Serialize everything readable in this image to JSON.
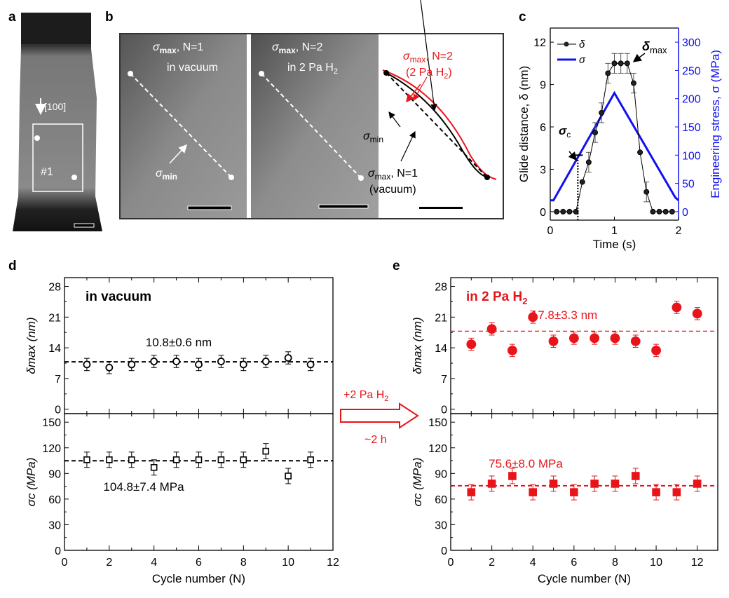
{
  "panels": {
    "a": "a",
    "b": "b",
    "c": "c",
    "d": "d",
    "e": "e"
  },
  "panel_a": {
    "direction": "[100]",
    "region": "#1"
  },
  "panel_b": {
    "img1_line1_sym": "σ",
    "img1_line1_sub": "max",
    "img1_line1_rest": ", N=1",
    "img1_line2": "in vacuum",
    "img2_line1_sym": "σ",
    "img2_line1_sub": "max",
    "img2_line1_rest": ", N=2",
    "img2_line2": "in 2 Pa H",
    "img2_line2_sub": "2",
    "min_sym": "σ",
    "min_sub": "min",
    "schem_red_sym": "σ",
    "schem_red_sub": "max",
    "schem_red_rest": ", N=2",
    "schem_red_line2": "(2 Pa H",
    "schem_red_line2_sub": "2",
    "schem_red_line2_end": ")",
    "schem_black_sym": "σ",
    "schem_black_sub": "max",
    "schem_black_rest": ", N=1",
    "schem_black_line2": "(vacuum)",
    "colors": {
      "red": "#e8141a",
      "black": "#000000"
    }
  },
  "transition": {
    "label": "+2 Pa H",
    "label_sub": "2",
    "duration": "~2 h",
    "color": "#e8141a"
  },
  "chart_data": [
    {
      "id": "c",
      "type": "line",
      "xlabel": "Time (s)",
      "xlim": [
        0,
        2
      ],
      "xticks": [
        0,
        1,
        2
      ],
      "ylabel": "Glide distance, δ (nm)",
      "ylim": [
        -0.6,
        13
      ],
      "yticks": [
        0,
        3,
        6,
        9,
        12
      ],
      "y2label": "Engineering stress, σ (MPa)",
      "y2lim": [
        -15,
        325
      ],
      "y2ticks": [
        0,
        50,
        100,
        150,
        200,
        250,
        300
      ],
      "legend": [
        {
          "name": "δ",
          "color": "#000000"
        },
        {
          "name": "σ",
          "color": "#1010f0"
        }
      ],
      "legend_placement": "top-left",
      "annotations": {
        "delta_max": "δ",
        "delta_max_sub": "max",
        "sigma_c": "σ",
        "sigma_c_sub": "c"
      },
      "series": [
        {
          "name": "δ",
          "axis": "left",
          "color": "#000000",
          "x": [
            0.1,
            0.2,
            0.3,
            0.4,
            0.5,
            0.6,
            0.7,
            0.8,
            0.9,
            1.0,
            1.1,
            1.2,
            1.3,
            1.4,
            1.5,
            1.6,
            1.7,
            1.8,
            1.9
          ],
          "y": [
            0,
            0,
            0,
            0,
            2.1,
            3.5,
            5.6,
            7.0,
            9.8,
            10.5,
            10.5,
            10.5,
            9.1,
            4.2,
            1.4,
            0,
            0,
            0,
            0
          ],
          "err": [
            0,
            0,
            0,
            0,
            0,
            0.7,
            0.7,
            0.7,
            0.7,
            0.7,
            0.7,
            0.7,
            0.7,
            0,
            0.7,
            0,
            0,
            0,
            0
          ]
        },
        {
          "name": "σ",
          "axis": "right",
          "color": "#1010f0",
          "x": [
            0,
            0.05,
            1.0,
            1.95,
            2.0
          ],
          "y": [
            20,
            20,
            210,
            25,
            20
          ]
        }
      ]
    },
    {
      "id": "d_top",
      "type": "scatter",
      "title": "in vacuum",
      "ylabel": "δmax (nm)",
      "ylim": [
        -1,
        30
      ],
      "yticks": [
        0,
        7,
        14,
        21,
        28
      ],
      "xlim": [
        0,
        12
      ],
      "mean_label": "10.8±0.6 nm",
      "mean": 10.8,
      "color": "#000000",
      "marker": "open-circle",
      "x": [
        1,
        2,
        3,
        4,
        5,
        6,
        7,
        8,
        9,
        10,
        11
      ],
      "y": [
        10.2,
        9.5,
        10.2,
        10.9,
        10.9,
        10.2,
        10.9,
        10.2,
        10.9,
        11.7,
        10.2
      ],
      "err": [
        1.4,
        1.4,
        1.4,
        1.4,
        1.4,
        1.4,
        1.4,
        1.4,
        1.4,
        1.4,
        1.4
      ]
    },
    {
      "id": "d_bottom",
      "type": "scatter",
      "ylabel": "σc (MPa)",
      "ylim": [
        0,
        160
      ],
      "yticks": [
        0,
        30,
        60,
        90,
        120,
        150
      ],
      "xlabel": "Cycle number (N)",
      "xlim": [
        0,
        12
      ],
      "xticks": [
        0,
        2,
        4,
        6,
        8,
        10,
        12
      ],
      "mean_label": "104.8±7.4 MPa",
      "mean": 104.8,
      "color": "#000000",
      "marker": "open-square",
      "x": [
        1,
        2,
        3,
        4,
        5,
        6,
        7,
        8,
        9,
        10,
        11
      ],
      "y": [
        106,
        106,
        106,
        97,
        106,
        106,
        106,
        106,
        116,
        87,
        106
      ],
      "err": [
        9,
        9,
        9,
        9,
        9,
        9,
        9,
        9,
        9,
        9,
        9
      ]
    },
    {
      "id": "e_top",
      "type": "scatter",
      "title": "in 2 Pa H",
      "title_sub": "2",
      "ylabel": "δmax (nm)",
      "ylim": [
        -1,
        30
      ],
      "yticks": [
        0,
        7,
        14,
        21,
        28
      ],
      "xlim": [
        0,
        13
      ],
      "mean_label": "17.8±3.3 nm",
      "mean": 17.8,
      "color": "#e8141a",
      "marker": "filled-circle",
      "x": [
        1,
        2,
        3,
        4,
        5,
        6,
        7,
        8,
        9,
        10,
        11,
        12
      ],
      "y": [
        14.8,
        18.3,
        13.4,
        21.0,
        15.5,
        16.2,
        16.2,
        16.2,
        15.5,
        13.4,
        23.2,
        21.8
      ],
      "err": [
        1.4,
        1.4,
        1.4,
        1.4,
        1.4,
        1.4,
        1.4,
        1.4,
        1.4,
        1.4,
        1.4,
        1.4
      ]
    },
    {
      "id": "e_bottom",
      "type": "scatter",
      "ylabel": "σc (MPa)",
      "ylim": [
        0,
        160
      ],
      "yticks": [
        0,
        30,
        60,
        90,
        120,
        150
      ],
      "xlabel": "Cycle number (N)",
      "xlim": [
        0,
        13
      ],
      "xticks": [
        0,
        2,
        4,
        6,
        8,
        10,
        12
      ],
      "mean_label": "75.6±8.0 MPa",
      "mean": 75.6,
      "color": "#e8141a",
      "marker": "filled-square",
      "x": [
        1,
        2,
        3,
        4,
        5,
        6,
        7,
        8,
        9,
        10,
        11,
        12
      ],
      "y": [
        68,
        78,
        87,
        68,
        78,
        68,
        78,
        78,
        87,
        68,
        68,
        78
      ],
      "err": [
        9,
        9,
        9,
        9,
        9,
        9,
        9,
        9,
        9,
        9,
        9,
        9
      ]
    }
  ]
}
